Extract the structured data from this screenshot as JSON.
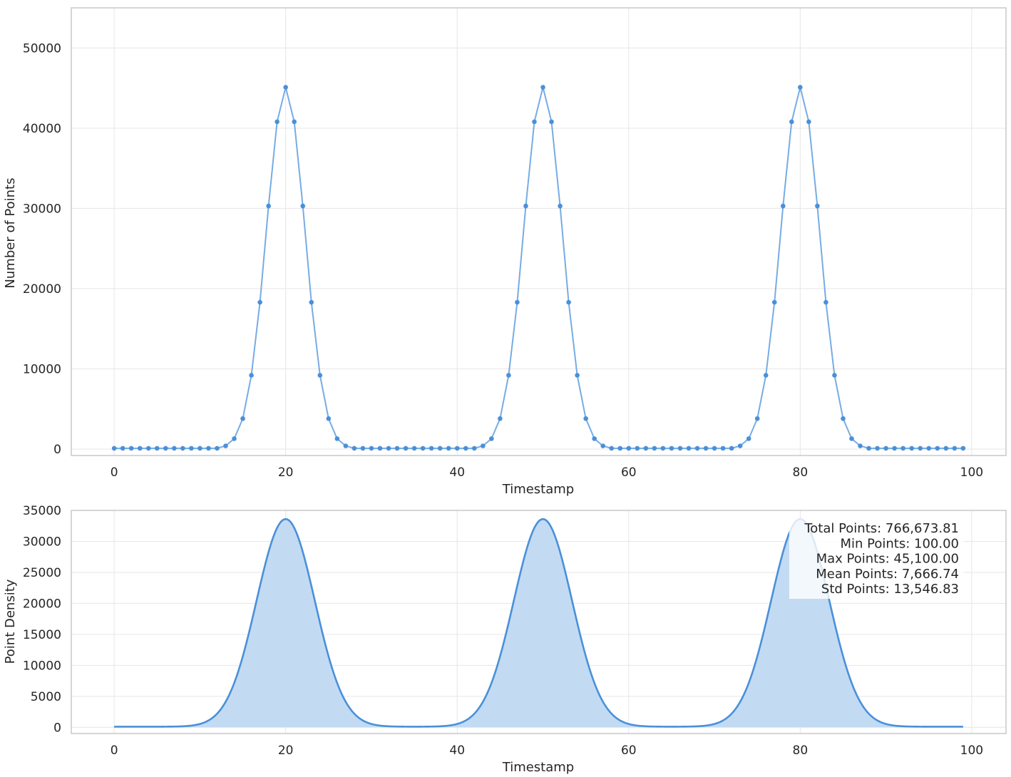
{
  "chart_data": [
    {
      "type": "line",
      "title": "",
      "xlabel": "Timestamp",
      "ylabel": "Number of Points",
      "xlim": [
        -5,
        104
      ],
      "ylim": [
        -800,
        55000
      ],
      "xticks": [
        "0",
        "20",
        "40",
        "60",
        "80",
        "100"
      ],
      "yticks": [
        "0",
        "10000",
        "20000",
        "30000",
        "40000",
        "50000"
      ],
      "grid": true,
      "markers": true,
      "color": "#4a90d9",
      "x": [
        0,
        1,
        2,
        3,
        4,
        5,
        6,
        7,
        8,
        9,
        10,
        11,
        12,
        13,
        14,
        15,
        16,
        17,
        18,
        19,
        20,
        21,
        22,
        23,
        24,
        25,
        26,
        27,
        28,
        29,
        30,
        31,
        32,
        33,
        34,
        35,
        36,
        37,
        38,
        39,
        40,
        41,
        42,
        43,
        44,
        45,
        46,
        47,
        48,
        49,
        50,
        51,
        52,
        53,
        54,
        55,
        56,
        57,
        58,
        59,
        60,
        61,
        62,
        63,
        64,
        65,
        66,
        67,
        68,
        69,
        70,
        71,
        72,
        73,
        74,
        75,
        76,
        77,
        78,
        79,
        80,
        81,
        82,
        83,
        84,
        85,
        86,
        87,
        88,
        89,
        90,
        91,
        92,
        93,
        94,
        95,
        96,
        97,
        98,
        99
      ],
      "values": [
        100,
        100,
        100,
        100,
        100,
        100,
        100,
        100,
        100,
        100,
        100,
        100,
        100,
        400,
        1300,
        3800,
        9200,
        18300,
        30300,
        40800,
        45100,
        40800,
        30300,
        18300,
        9200,
        3800,
        1300,
        400,
        100,
        100,
        100,
        100,
        100,
        100,
        100,
        100,
        100,
        100,
        100,
        100,
        100,
        100,
        100,
        400,
        1300,
        3800,
        9200,
        18300,
        30300,
        40800,
        45100,
        40800,
        30300,
        18300,
        9200,
        3800,
        1300,
        400,
        100,
        100,
        100,
        100,
        100,
        100,
        100,
        100,
        100,
        100,
        100,
        100,
        100,
        100,
        100,
        400,
        1300,
        3800,
        9200,
        18300,
        30300,
        40800,
        45100,
        40800,
        30300,
        18300,
        9200,
        3800,
        1300,
        400,
        100,
        100,
        100,
        100,
        100,
        100,
        100,
        100,
        100,
        100,
        100,
        100
      ]
    },
    {
      "type": "area",
      "title": "",
      "xlabel": "Timestamp",
      "ylabel": "Point Density",
      "xlim": [
        -5,
        104
      ],
      "ylim": [
        -1000,
        35000
      ],
      "xticks": [
        "0",
        "20",
        "40",
        "60",
        "80",
        "100"
      ],
      "yticks": [
        "0",
        "5000",
        "10000",
        "15000",
        "20000",
        "25000",
        "30000",
        "35000"
      ],
      "grid": true,
      "color": "#4a90d9",
      "fill_color": "#bfd9f2",
      "peaks": [
        {
          "x": 20,
          "y": 33600
        },
        {
          "x": 50,
          "y": 33600
        },
        {
          "x": 80,
          "y": 33600
        }
      ],
      "baseline": 100,
      "peak_width_sd": 3.4,
      "x_range": [
        0,
        99
      ],
      "annotations": [
        "Total Points: 766,673.81",
        "Min Points: 100.00",
        "Max Points: 45,100.00",
        "Mean Points: 7,666.74",
        "Std Points: 13,546.83"
      ],
      "annotation_position": "top-right"
    }
  ]
}
